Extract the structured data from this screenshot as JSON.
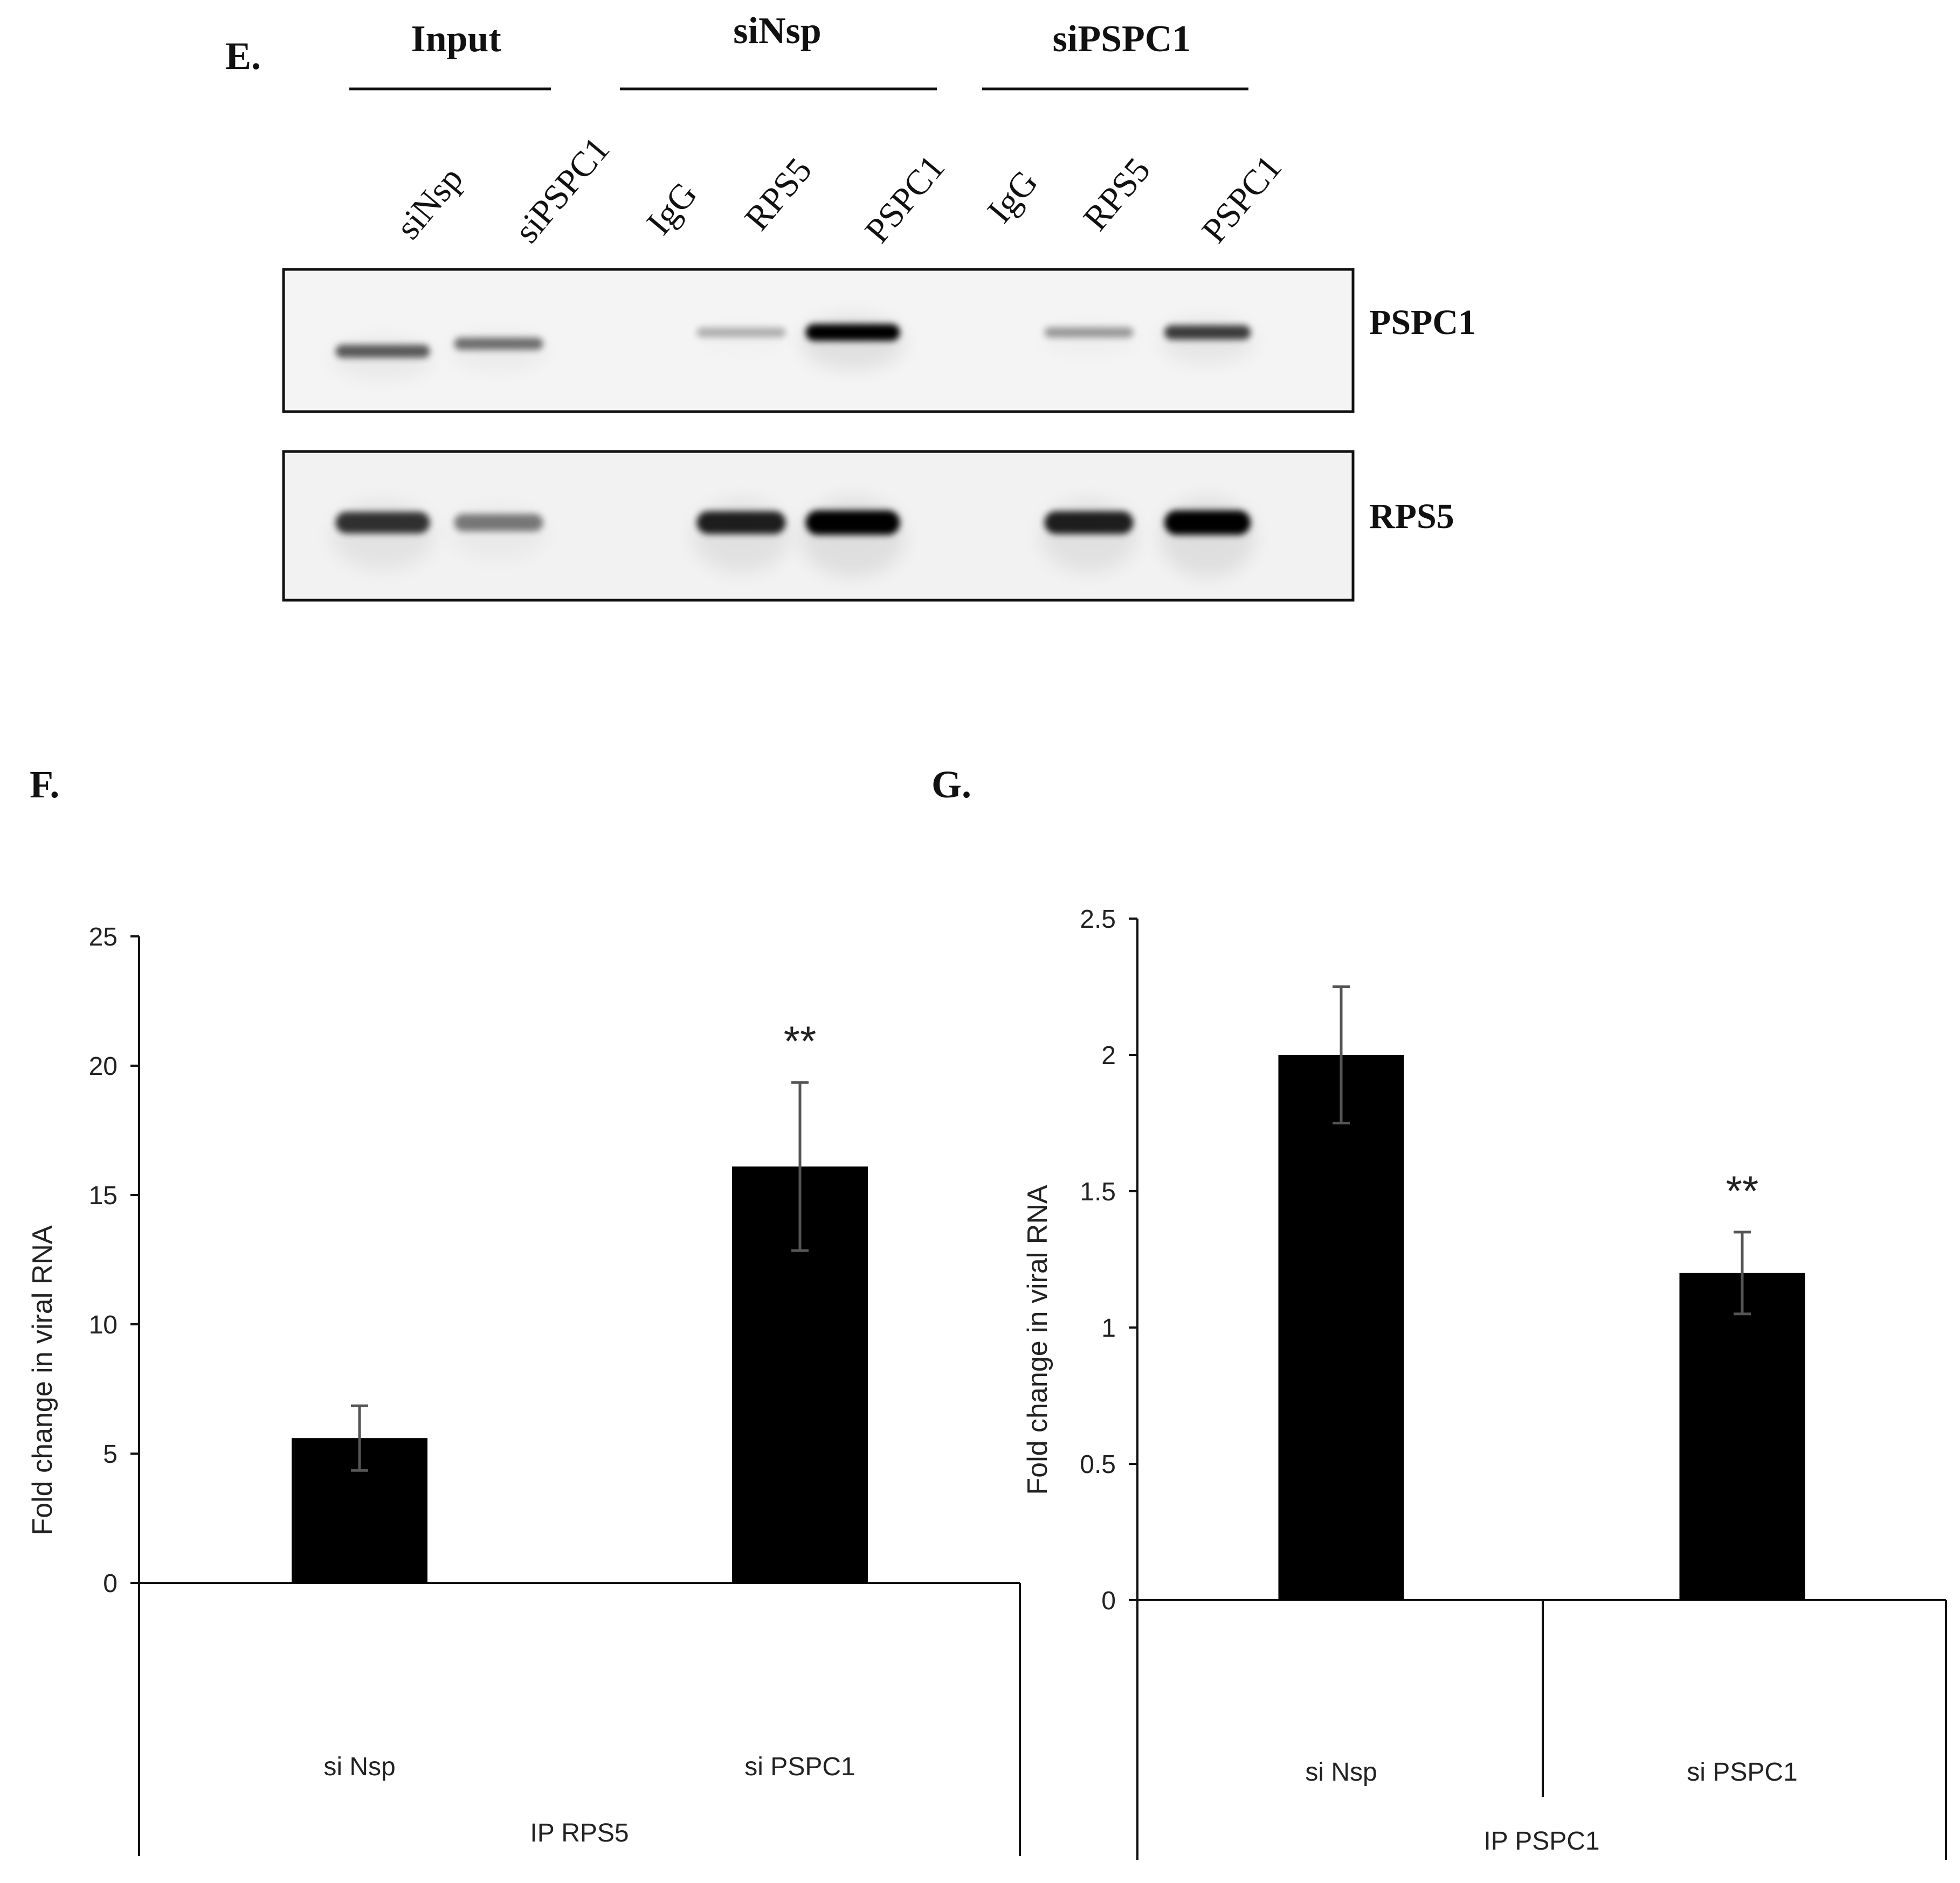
{
  "panel_e": {
    "letter": "E.",
    "groups": [
      "Input",
      "siNsp",
      "siPSPC1"
    ],
    "lanes": [
      "siNsp",
      "siPSPC1",
      "IgG",
      "RPS5",
      "PSPC1",
      "IgG",
      "RPS5",
      "PSPC1"
    ],
    "blots": [
      {
        "label": "PSPC1",
        "intensities": [
          0.55,
          0.45,
          0.0,
          0.15,
          1.0,
          0.0,
          0.25,
          0.7
        ]
      },
      {
        "label": "RPS5",
        "intensities": [
          0.75,
          0.4,
          0.0,
          0.85,
          1.0,
          0.0,
          0.85,
          1.0
        ]
      }
    ]
  },
  "chart_data": [
    {
      "panel": "F.",
      "type": "bar",
      "categories": [
        "si Nsp",
        "si PSPC1"
      ],
      "values": [
        5.6,
        16.1
      ],
      "errors": [
        1.25,
        3.25
      ],
      "annotations": [
        "",
        "**"
      ],
      "group_label": "IP RPS5",
      "ylabel": "Fold change in viral RNA",
      "ylim": [
        0,
        25
      ],
      "yticks": [
        "0",
        "5",
        "10",
        "15",
        "20",
        "25"
      ],
      "color": "#000000"
    },
    {
      "panel": "G.",
      "type": "bar",
      "categories": [
        "si Nsp",
        "si PSPC1"
      ],
      "values": [
        2.0,
        1.2
      ],
      "errors": [
        0.25,
        0.15
      ],
      "annotations": [
        "",
        "**"
      ],
      "group_label": "IP PSPC1",
      "ylabel": "Fold change in viral RNA",
      "ylim": [
        0,
        2.5
      ],
      "yticks": [
        "0",
        "0.5",
        "1",
        "1.5",
        "2",
        "2.5"
      ],
      "color": "#000000"
    }
  ]
}
